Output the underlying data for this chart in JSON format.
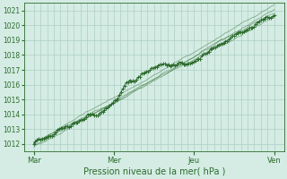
{
  "title": "",
  "xlabel": "Pression niveau de la mer( hPa )",
  "ylabel": "",
  "bg_color": "#d4ece4",
  "grid_color": "#aecec4",
  "line_color": "#2d6b2d",
  "smooth_color": "#3a7a3a",
  "axis_label_color": "#2d6b2d",
  "tick_label_color": "#2d6b2d",
  "ylim": [
    1011.5,
    1021.5
  ],
  "yticks": [
    1012,
    1013,
    1014,
    1015,
    1016,
    1017,
    1018,
    1019,
    1020,
    1021
  ],
  "day_labels": [
    "Mar",
    "Mer",
    "Jeu",
    "Ven"
  ],
  "n_points": 144,
  "xlim": [
    -0.04,
    1.04
  ]
}
